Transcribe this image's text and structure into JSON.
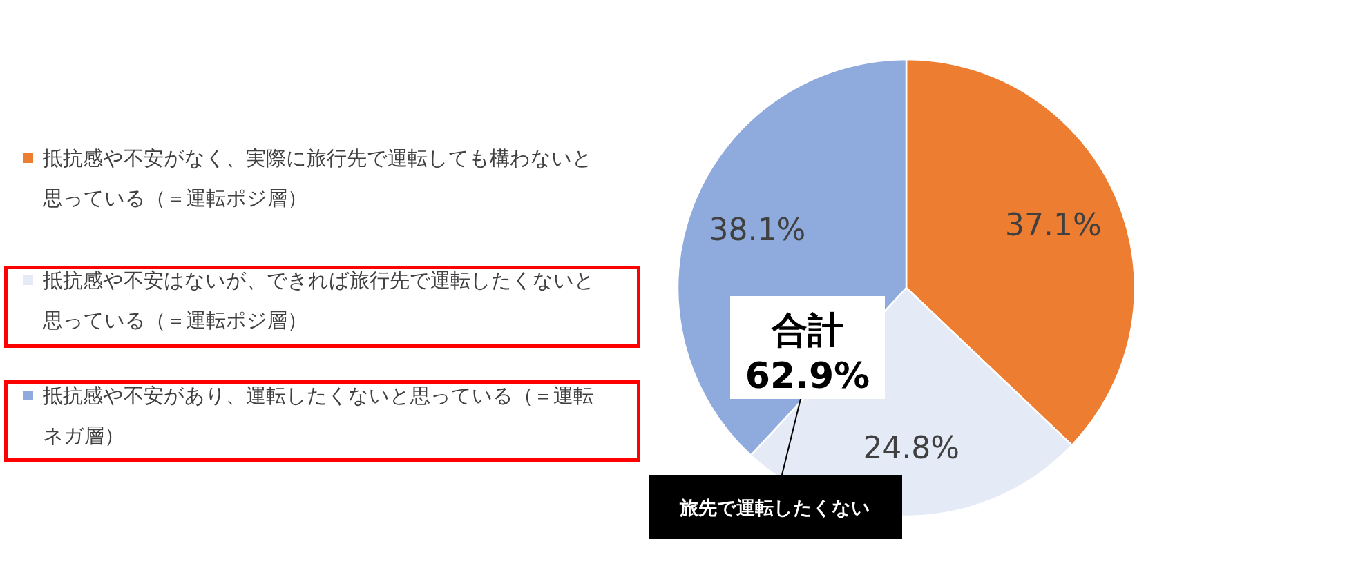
{
  "chart_data": {
    "type": "pie",
    "categories": [
      "抵抗感や不安がなく、実際に旅行先で運転しても構わないと思っている（＝運転ポジ層）",
      "抵抗感や不安はないが、できれば旅行先で運転したくないと思っている（＝運転ポジ層）",
      "抵抗感や不安があり、運転したくないと思っている（＝運転ネガ層）"
    ],
    "values": [
      37.1,
      24.8,
      38.1
    ],
    "colors": [
      "#ed7d31",
      "#e4eaf6",
      "#8faadc"
    ],
    "value_labels": [
      "37.1%",
      "24.8%",
      "38.1%"
    ],
    "legend": "left",
    "annotations": [
      "合計\n62.9%",
      "旅先で運転したくない"
    ]
  }
}
